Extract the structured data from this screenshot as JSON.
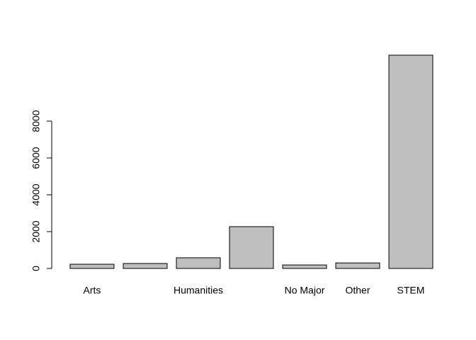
{
  "chart_data": {
    "type": "bar",
    "categories": [
      "Arts",
      null,
      "Humanities",
      null,
      "No Major",
      "Other",
      "STEM"
    ],
    "values": [
      230,
      270,
      580,
      2270,
      190,
      300,
      11580
    ],
    "color": "#bebebe",
    "ylim": [
      0,
      12000
    ],
    "yticks": [
      0,
      2000,
      4000,
      6000,
      8000
    ]
  }
}
